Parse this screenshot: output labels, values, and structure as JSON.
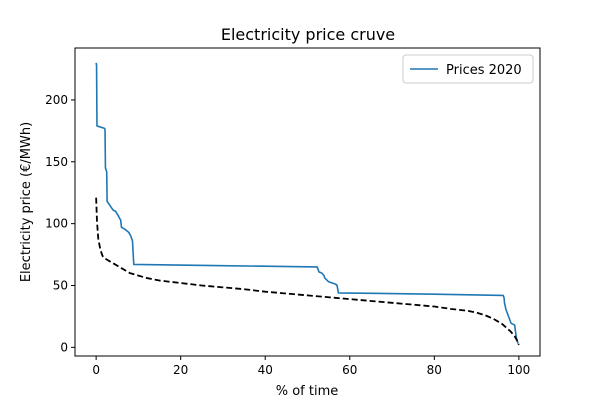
{
  "chart_data": {
    "type": "line",
    "title": "Electricity price cruve",
    "xlabel": "% of time",
    "ylabel": "Electricity price (€/MWh)",
    "xlim": [
      -5,
      105
    ],
    "ylim": [
      -7,
      242
    ],
    "xticks": [
      0,
      20,
      40,
      60,
      80,
      100
    ],
    "yticks": [
      0,
      50,
      100,
      150,
      200
    ],
    "grid": false,
    "legend_position": "top-right",
    "series": [
      {
        "name": "Prices 2020",
        "color": "#1f77b4",
        "style": "solid",
        "x": [
          0,
          0.1,
          0.2,
          2.0,
          2.1,
          2.2,
          2.3,
          2.4,
          2.5,
          2.6,
          3.0,
          4.0,
          4.6,
          5.3,
          5.6,
          5.8,
          6.0,
          7.0,
          7.7,
          8.2,
          8.6,
          8.9,
          30,
          52.3,
          52.7,
          53.4,
          53.9,
          54.1,
          55.0,
          56.7,
          57.0,
          57.3,
          80,
          96.3,
          96.5,
          96.6,
          96.8,
          96.9,
          98.1,
          98.2,
          98.4,
          99.0,
          99.4,
          99.8
        ],
        "y": [
          230,
          228,
          179,
          177,
          176,
          145,
          144,
          143,
          142,
          118,
          116,
          111,
          110,
          106,
          104,
          103,
          97,
          95,
          93,
          90,
          86,
          67,
          66,
          65,
          61,
          60,
          58,
          56,
          53,
          51,
          50,
          44,
          43,
          42,
          40,
          36,
          33,
          31,
          20,
          19.5,
          19,
          18,
          8,
          3
        ]
      },
      {
        "name": "",
        "color": "#000000",
        "style": "dashed",
        "x": [
          0,
          0.2,
          0.5,
          1,
          1.5,
          2,
          3,
          4,
          5,
          6,
          7,
          8,
          10,
          12,
          15,
          20,
          25,
          30,
          35,
          40,
          45,
          50,
          55,
          60,
          65,
          70,
          75,
          80,
          84,
          88,
          90,
          92,
          94,
          96,
          97,
          98,
          99,
          99.5,
          100
        ],
        "y": [
          121,
          102,
          88,
          79,
          74,
          72,
          70,
          68,
          66,
          64,
          62,
          60,
          58,
          56,
          54,
          52,
          50,
          48.5,
          47,
          45,
          43.5,
          42,
          40.5,
          39,
          37.5,
          36,
          34.5,
          33,
          31,
          29.5,
          28,
          26,
          23,
          19,
          16,
          13,
          9,
          6,
          2
        ]
      }
    ]
  }
}
